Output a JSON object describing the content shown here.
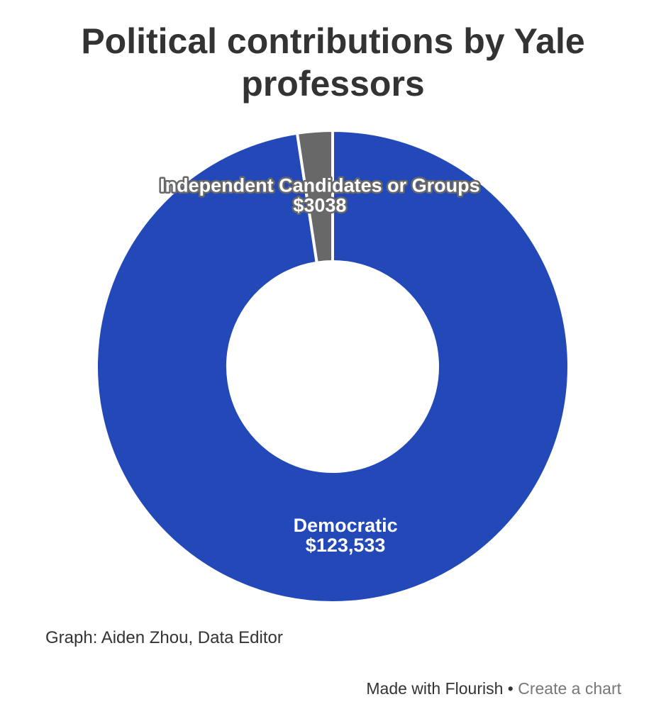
{
  "chart_data": {
    "type": "donut",
    "title": "Political contributions by Yale professors",
    "categories": [
      "Democratic",
      "Independent Candidates or Groups"
    ],
    "values": [
      123533,
      3038
    ],
    "value_labels": [
      "$123,533",
      "$3038"
    ],
    "colors": [
      "#2349b9",
      "#686868"
    ],
    "source": "Graph: Aiden Zhou, Data Editor",
    "footer": {
      "made_with": "Made with Flourish",
      "separator": "•",
      "link": "Create a chart"
    }
  }
}
